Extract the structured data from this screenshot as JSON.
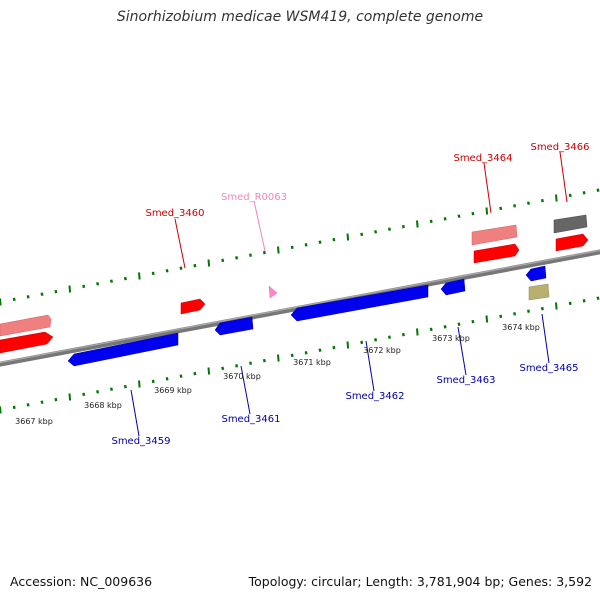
{
  "title": "Sinorhizobium medicae WSM419, complete genome",
  "footer": {
    "accession": "Accession: NC_009636",
    "summary": "Topology: circular; Length: 3,781,904 bp; Genes: 3,592"
  },
  "colors": {
    "forward_gene": "#ff0000",
    "forward_cds": "#f08080",
    "reverse_gene": "#0000ff",
    "rna": "#ff88cc",
    "pseudo": "#666666",
    "misc": "#b8b070",
    "backbone": "#888888",
    "tick": "#007700",
    "forward_label": "#cc0000",
    "reverse_label": "#0000aa",
    "rna_label": "#ee88bb"
  },
  "scale_labels": [
    "3667 kbp",
    "3668 kbp",
    "3669 kbp",
    "3670 kbp",
    "3671 kbp",
    "3672 kbp",
    "3673 kbp",
    "3674 kbp"
  ],
  "gene_labels": {
    "forward": [
      "Smed_3460",
      "Smed_3464",
      "Smed_3466"
    ],
    "rna": [
      "Smed_R0063"
    ],
    "reverse": [
      "Smed_3459",
      "Smed_3461",
      "Smed_3462",
      "Smed_3463",
      "Smed_3465"
    ]
  }
}
